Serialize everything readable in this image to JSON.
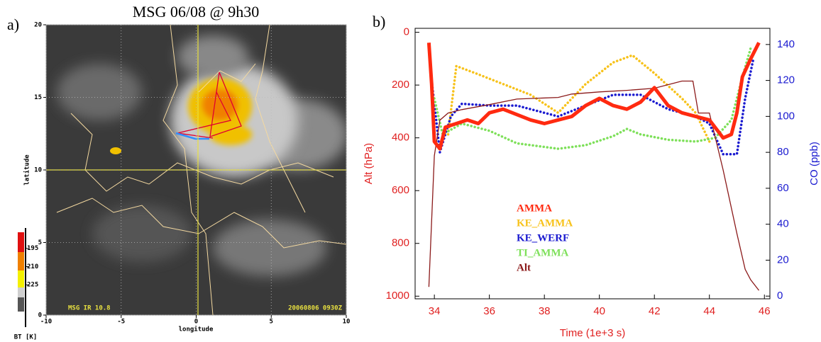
{
  "chart_data": [
    {
      "type": "map",
      "panel": "a)",
      "title": "MSG 06/08 @ 9h30",
      "x_label": "longitude",
      "y_label": "latitude",
      "xlim": [
        -10,
        10
      ],
      "xticks": [
        -10,
        -5,
        0,
        5,
        10
      ],
      "ylim": [
        0,
        20
      ],
      "yticks": [
        0,
        5,
        10,
        15,
        20
      ],
      "grid": true,
      "image_labels": [
        "MSG IR 10.8",
        "20060806 0930Z"
      ],
      "colorbar": {
        "label": "BT [K]",
        "lim": [
          180,
          247
        ],
        "ticks": [
          195,
          210,
          225
        ]
      }
    },
    {
      "type": "line",
      "panel": "b)",
      "x_label": "Time (1e+3 s)",
      "y_label": "Alt (hPa)",
      "y2_label": "CO (ppb)",
      "xlim": [
        33.3,
        46.2
      ],
      "xticks": [
        34,
        36,
        38,
        40,
        42,
        44,
        46
      ],
      "ylim": [
        -15,
        1010
      ],
      "y_inverted": true,
      "yticks": [
        0,
        200,
        400,
        600,
        800,
        1000
      ],
      "y2lim": [
        -1.5,
        149
      ],
      "y2ticks": [
        0,
        20,
        40,
        60,
        80,
        100,
        120,
        140
      ],
      "series": [
        {
          "name": "AMMA",
          "color": "#ff2a10",
          "axis": "y2",
          "style": "thick",
          "x": [
            33.8,
            33.9,
            34.0,
            34.2,
            34.4,
            34.8,
            35.2,
            35.6,
            36.0,
            36.5,
            37.0,
            37.5,
            38.0,
            38.5,
            39.0,
            39.5,
            40.0,
            40.5,
            41.0,
            41.5,
            42.0,
            42.5,
            43.0,
            43.5,
            44.0,
            44.5,
            44.8,
            45.0,
            45.2,
            45.5,
            45.8
          ],
          "values": [
            141,
            118,
            86,
            82,
            94,
            96,
            98,
            96,
            102,
            104,
            101,
            98,
            96,
            98,
            100,
            106,
            110,
            106,
            104,
            108,
            116,
            106,
            102,
            100,
            98,
            88,
            90,
            102,
            122,
            132,
            141
          ]
        },
        {
          "name": "KE_AMMA",
          "color": "#f7c21a",
          "axis": "y2",
          "style": "dots",
          "x": [
            34.5,
            34.8,
            35.5,
            36.5,
            37.5,
            38.5,
            39.5,
            40.5,
            41.2,
            42.0,
            43.0,
            43.5,
            44.0
          ],
          "values": [
            90,
            128,
            124,
            118,
            112,
            102,
            118,
            130,
            134,
            124,
            110,
            102,
            86
          ]
        },
        {
          "name": "KE_WERF",
          "color": "#1a1ad0",
          "axis": "y2",
          "style": "dots",
          "x": [
            33.9,
            34.2,
            34.6,
            35.0,
            36.0,
            37.0,
            38.0,
            38.5,
            39.5,
            40.5,
            41.5,
            42.5,
            43.5,
            44.0,
            44.5,
            45.0,
            45.3,
            45.6
          ],
          "values": [
            120,
            80,
            100,
            107,
            106,
            106,
            102,
            100,
            106,
            112,
            112,
            104,
            100,
            96,
            79,
            79,
            110,
            132
          ]
        },
        {
          "name": "TI_AMMA",
          "color": "#7ee05a",
          "axis": "y2",
          "style": "dots",
          "x": [
            34.0,
            34.3,
            35.0,
            36.0,
            37.0,
            38.5,
            39.5,
            40.5,
            41.0,
            41.5,
            42.5,
            43.5,
            44.2,
            44.8,
            45.2,
            45.5
          ],
          "values": [
            110,
            90,
            96,
            92,
            85,
            82,
            84,
            89,
            93,
            90,
            87,
            86,
            88,
            98,
            122,
            138
          ]
        },
        {
          "name": "Alt",
          "color": "#8b1a1a",
          "axis": "y",
          "style": "solid",
          "x": [
            33.8,
            34.0,
            34.2,
            34.5,
            35.0,
            36.0,
            37.0,
            38.5,
            39.0,
            40.0,
            41.0,
            42.0,
            43.0,
            43.4,
            43.6,
            44.0,
            44.5,
            45.0,
            45.3,
            45.5,
            45.8
          ],
          "values": [
            965,
            468,
            333,
            306,
            293,
            274,
            253,
            247,
            234,
            226,
            220,
            212,
            185,
            185,
            306,
            306,
            522,
            763,
            898,
            938,
            978
          ]
        }
      ]
    }
  ]
}
